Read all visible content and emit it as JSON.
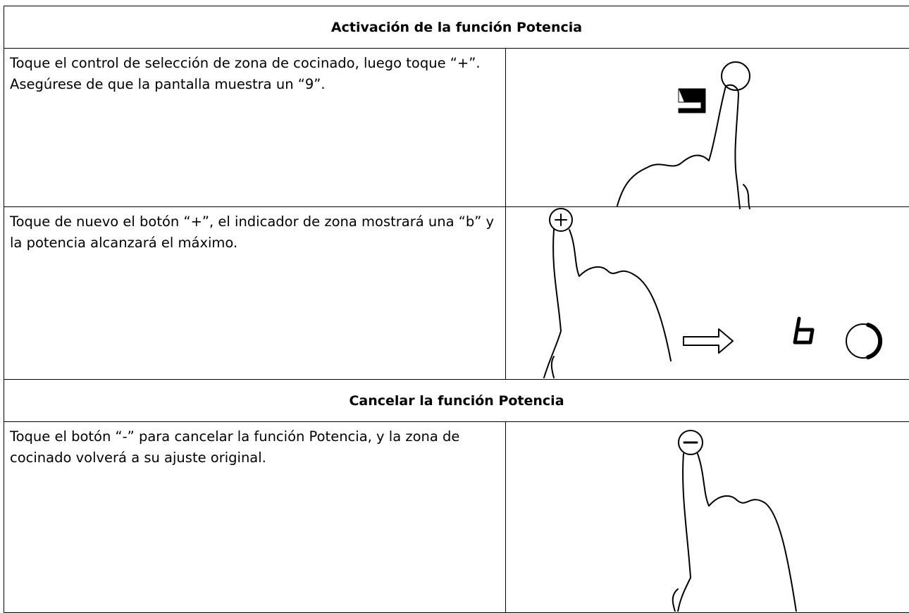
{
  "sections": [
    {
      "heading": "Activación de la función Potencia",
      "rows": [
        {
          "text": "Toque el control de selección de zona de cocinado, luego toque “+”. Asegúrese de que la pantalla muestra un “9”."
        },
        {
          "text": "Toque de nuevo el botón “+”, el indicador de zona mostrará una “b” y la potencia alcanzará el máximo."
        }
      ]
    },
    {
      "heading": "Cancelar la función Potencia",
      "rows": [
        {
          "text": "Toque el botón “-” para cancelar la función Potencia, y la zona de cocinado volverá a su ajuste original."
        }
      ]
    }
  ]
}
